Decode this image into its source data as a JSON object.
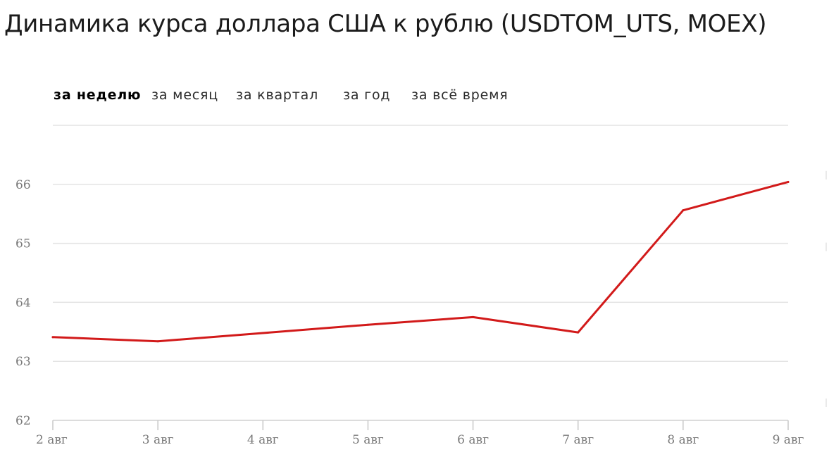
{
  "page": {
    "title": "Динамика курса доллара США к рублю (USDTOM_UTS, MOEX)"
  },
  "period_tabs": [
    {
      "label": "за неделю",
      "active": true
    },
    {
      "label": "за месяц",
      "active": false
    },
    {
      "label": "за квартал",
      "active": false
    },
    {
      "label": "за год",
      "active": false
    },
    {
      "label": "за всё время",
      "active": false
    }
  ],
  "chart_data": {
    "type": "line",
    "title": "",
    "xlabel": "",
    "ylabel": "",
    "categories": [
      "2 авг",
      "3 авг",
      "4 авг",
      "5 авг",
      "6 авг",
      "7 авг",
      "8 авг",
      "9 авг"
    ],
    "series": [
      {
        "values": [
          63.41,
          63.34,
          63.48,
          63.62,
          63.75,
          63.49,
          65.56,
          66.04
        ],
        "color": "#d21a1a"
      }
    ],
    "yticks": [
      "62",
      "63",
      "64",
      "65",
      "66"
    ],
    "ylim": [
      62,
      67
    ],
    "grid": true,
    "legend": "none"
  }
}
